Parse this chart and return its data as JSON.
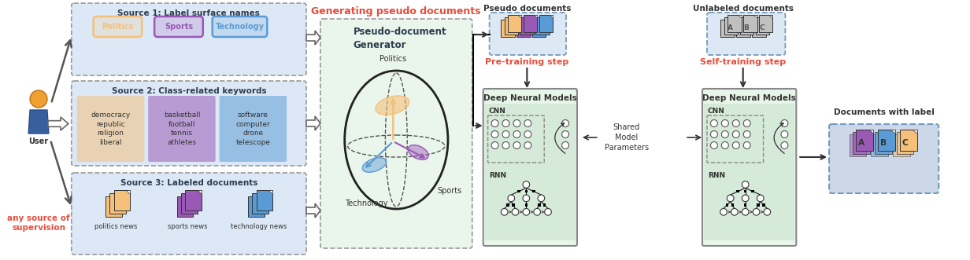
{
  "bg_color": "#ffffff",
  "light_blue_bg": "#dce8f5",
  "light_green_bg": "#eaf5eb",
  "source1_title": "Source 1: Label surface names",
  "source2_title": "Source 2: Class-related keywords",
  "source3_title": "Source 3: Labeled documents",
  "politics_color": "#f5c07a",
  "sports_color": "#9b59b6",
  "technology_color": "#5b9bd5",
  "keyword_politics": "democracy\nrepublic\nreligion\nliberal",
  "keyword_sports": "basketball\nfootball\ntennis\nathletes",
  "keyword_tech": "software\ncomputer\ndrone\ntelescope",
  "gen_title": "Generating pseudo documents",
  "pseudo_gen_title": "Pseudo-document\nGenerator",
  "pre_training": "Pre-training step",
  "self_training": "Self-training step",
  "pseudo_docs_label": "Pseudo documents",
  "unlabeled_docs_label": "Unlabeled documents",
  "labeled_docs_label": "Documents with label",
  "dnn_title": "Deep Neural Models",
  "cnn_label": "CNN",
  "rnn_label": "RNN",
  "shared_label": "Shared\nModel\nParameters",
  "user_label": "User",
  "any_source_label": "any source of\nsupervision",
  "red_color": "#e74c3c",
  "dark_color": "#2c3e50"
}
